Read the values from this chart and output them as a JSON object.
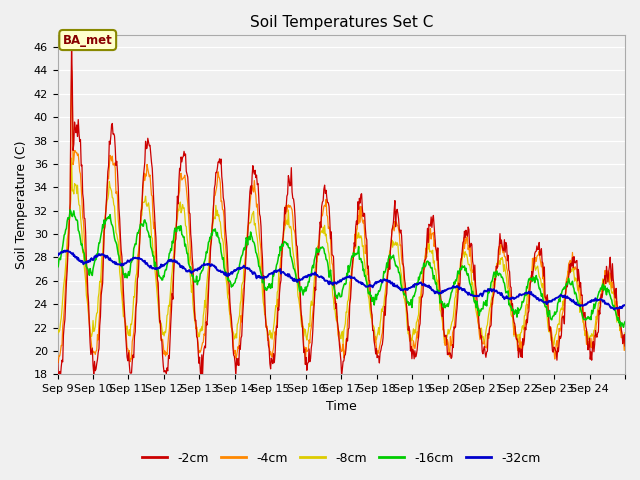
{
  "title": "Soil Temperatures Set C",
  "xlabel": "Time",
  "ylabel": "Soil Temperature (C)",
  "ylim": [
    18,
    47
  ],
  "yticks": [
    18,
    20,
    22,
    24,
    26,
    28,
    30,
    32,
    34,
    36,
    38,
    40,
    42,
    44,
    46
  ],
  "colors": {
    "-2cm": "#cc0000",
    "-4cm": "#ff8800",
    "-8cm": "#ddcc00",
    "-16cm": "#00cc00",
    "-32cm": "#0000cc"
  },
  "annotation_text": "BA_met",
  "x_labels": [
    "Sep 9",
    "Sep 10",
    "Sep 11",
    "Sep 12",
    "Sep 13",
    "Sep 14",
    "Sep 15",
    "Sep 16",
    "Sep 17",
    "Sep 18",
    "Sep 19",
    "Sep 20",
    "Sep 21",
    "Sep 22",
    "Sep 23",
    "Sep 24",
    ""
  ],
  "x_ticks": [
    0,
    1,
    2,
    3,
    4,
    5,
    6,
    7,
    8,
    9,
    10,
    11,
    12,
    13,
    14,
    15,
    16
  ],
  "bg_color": "#f0f0f0"
}
